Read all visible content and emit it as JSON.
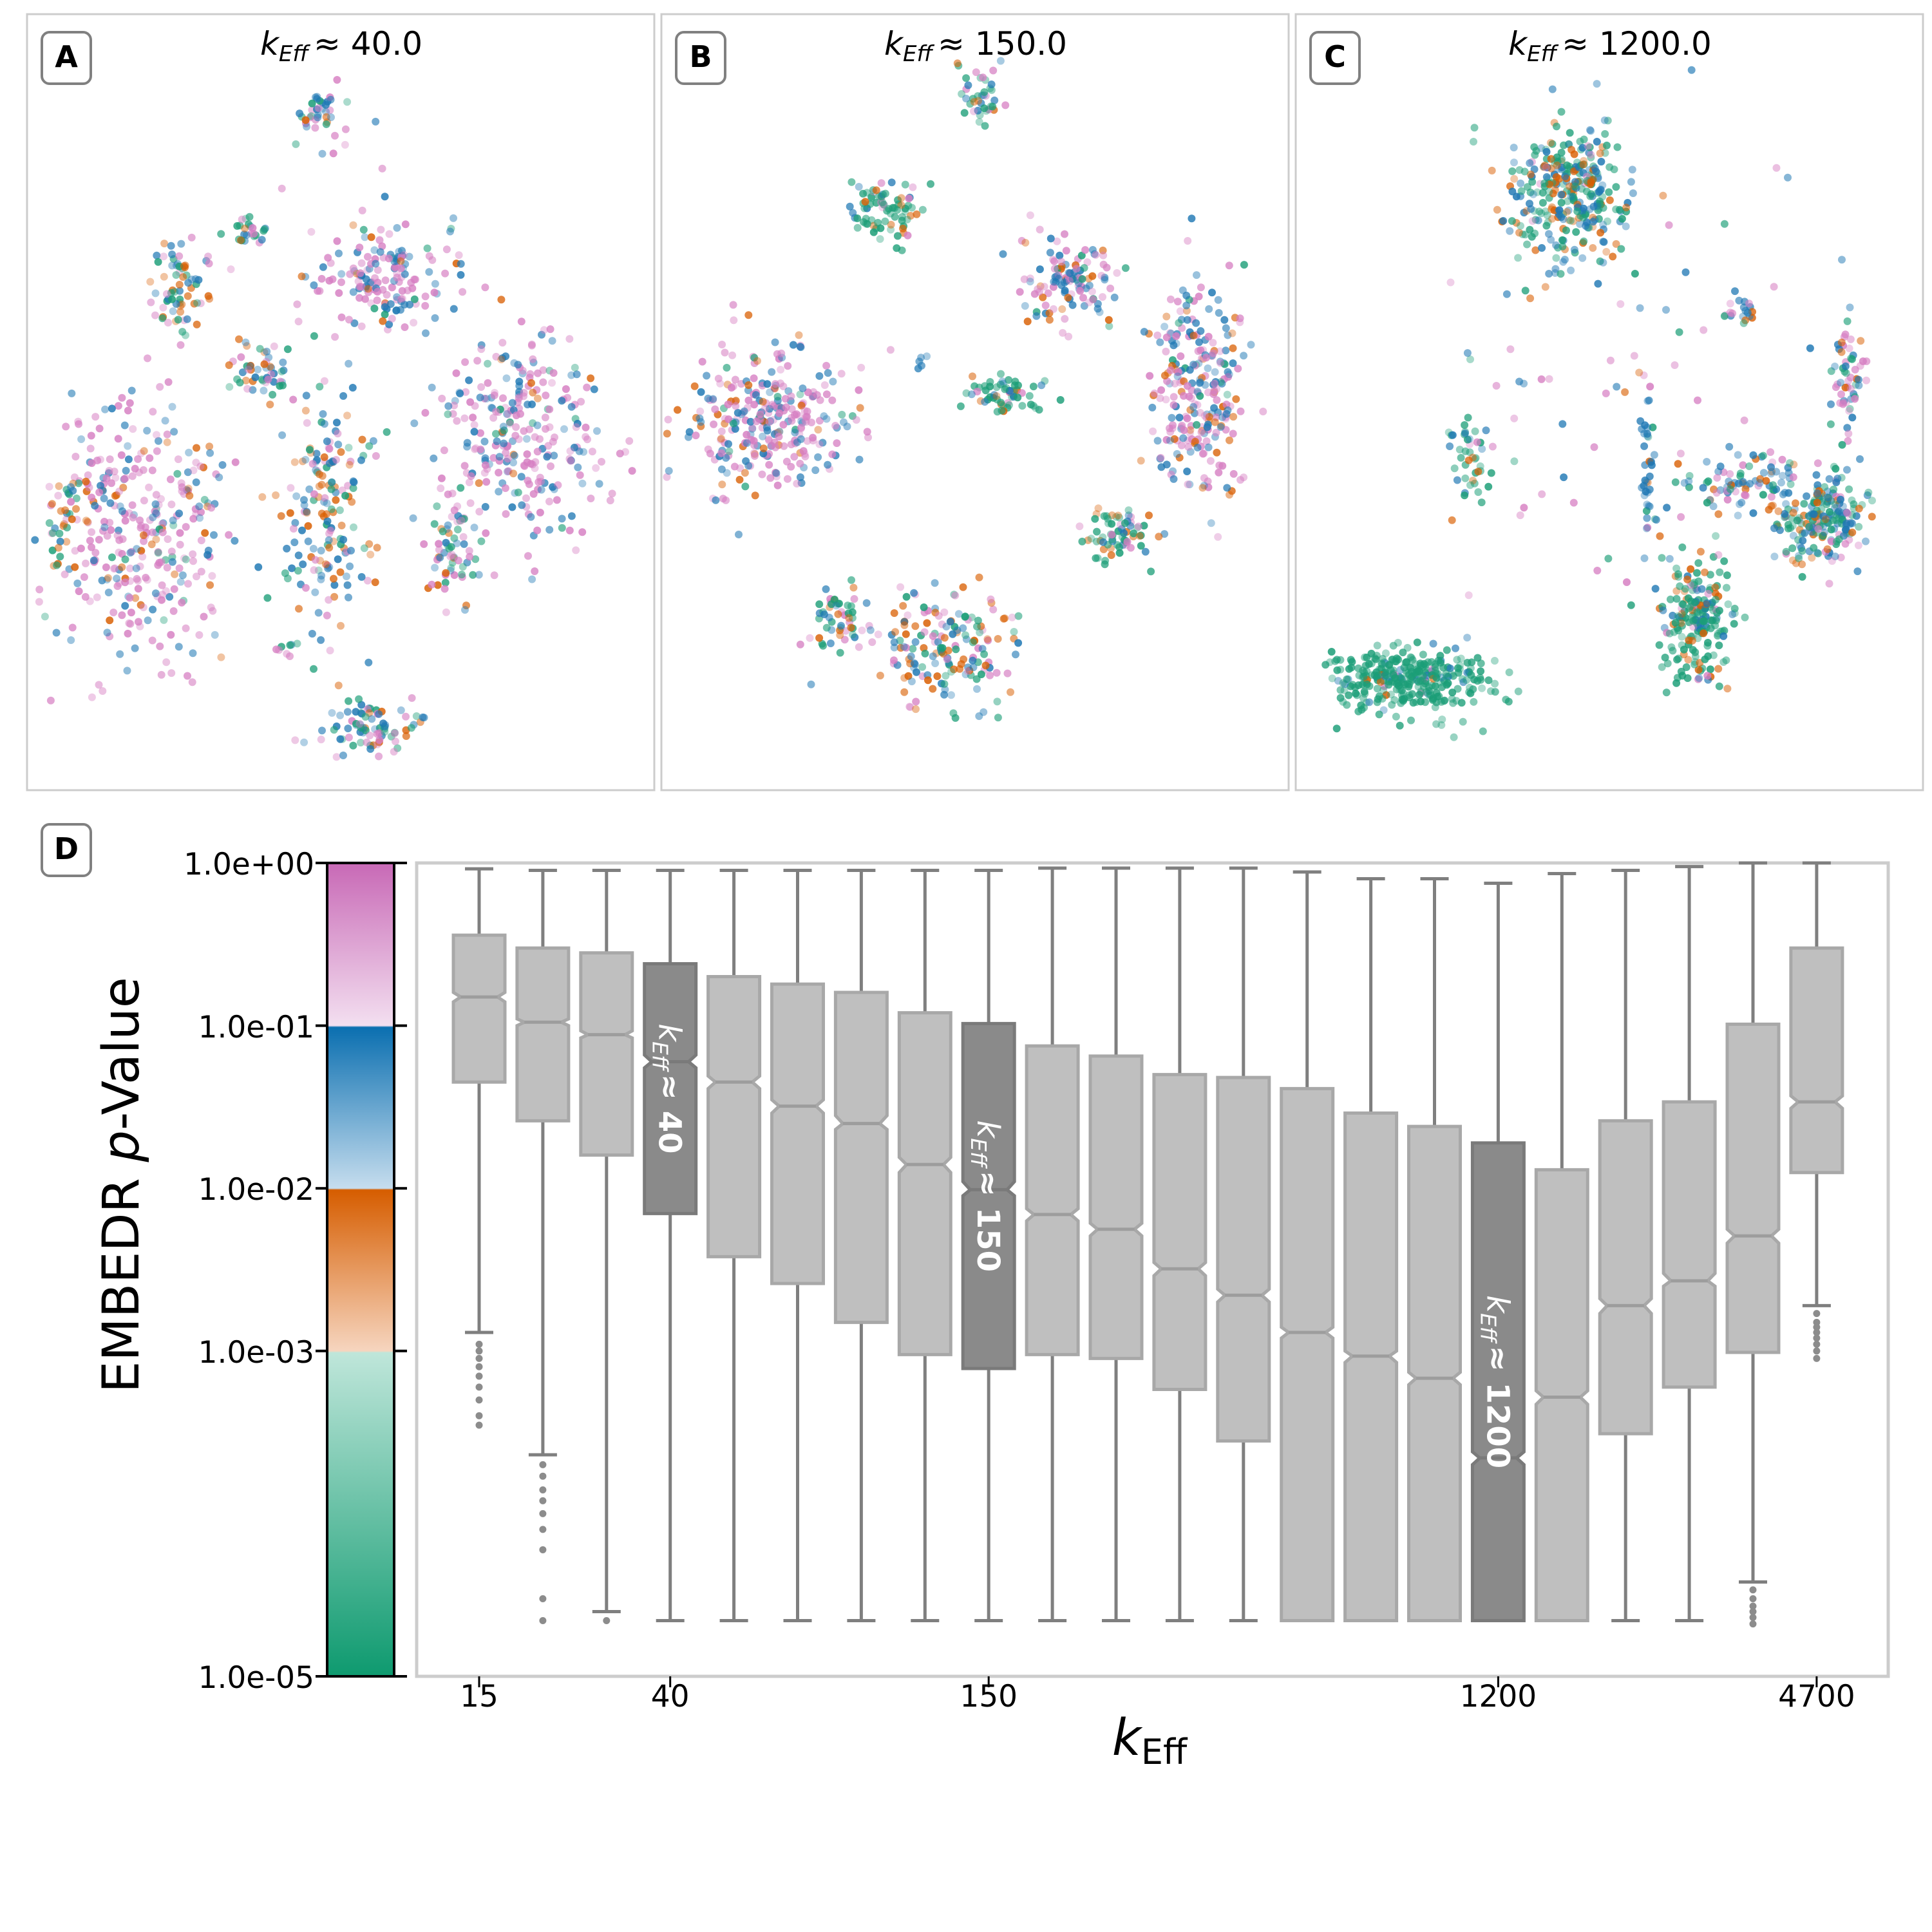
{
  "panels": [
    {
      "letter": "A",
      "k_symbol": "k",
      "k_subscript": "Eff",
      "k_value": "≈ 40.0"
    },
    {
      "letter": "B",
      "k_symbol": "k",
      "k_subscript": "Eff",
      "k_value": "≈ 150.0"
    },
    {
      "letter": "C",
      "k_symbol": "k",
      "k_subscript": "Eff",
      "k_value": "≈ 1200.0"
    }
  ],
  "panel_d_letter": "D",
  "colors": {
    "pink": "#d67ec2",
    "blue": "#1f78b4",
    "orange": "#d95f02",
    "green": "#1b9e77",
    "box_light": "#bfbfbf",
    "box_dark": "#8a8a8a",
    "line": "#7f7f7f",
    "frame": "#cccccc"
  },
  "colorbar": {
    "ticks": [
      "1.0e+00",
      "1.0e-01",
      "1.0e-02",
      "1.0e-03",
      "1.0e-05"
    ],
    "tick_values": [
      1,
      0.1,
      0.01,
      0.001,
      1e-05
    ]
  },
  "chart_data": {
    "type": "box",
    "title": "",
    "ylabel_prefix": "EMBEDR ",
    "ylabel_italic": "p",
    "ylabel_suffix": "-Value",
    "xlabel_symbol": "k",
    "xlabel_subscript": "Eff",
    "yscale": "log",
    "ylim": [
      1e-05,
      1
    ],
    "x_tick_labels": [
      {
        "label": "15",
        "box_index": 0
      },
      {
        "label": "40",
        "box_index": 3
      },
      {
        "label": "150",
        "box_index": 8
      },
      {
        "label": "1200",
        "box_index": 16
      },
      {
        "label": "4700",
        "box_index": 21
      }
    ],
    "annotations": [
      {
        "box_index": 3,
        "symbol": "k",
        "subscript": "Eff",
        "text": "≈ 40"
      },
      {
        "box_index": 8,
        "symbol": "k",
        "subscript": "Eff",
        "text": "≈ 150"
      },
      {
        "box_index": 16,
        "symbol": "k",
        "subscript": "Eff",
        "text": "≈ 1200"
      }
    ],
    "boxes": [
      {
        "q1": 0.045,
        "median": 0.15,
        "q3": 0.36,
        "whisker_low": 0.0013,
        "whisker_high": 0.92,
        "ci_low": 0.14,
        "ci_high": 0.16,
        "highlight": false,
        "outliers": [
          0.0011,
          0.001,
          0.0009,
          0.0008,
          0.0007,
          0.0006,
          0.0005,
          0.0004,
          0.00035
        ]
      },
      {
        "q1": 0.026,
        "median": 0.105,
        "q3": 0.3,
        "whisker_low": 0.00023,
        "whisker_high": 0.9,
        "ci_low": 0.1,
        "ci_high": 0.11,
        "highlight": false,
        "outliers": [
          0.0002,
          0.00017,
          0.00014,
          0.00012,
          0.0001,
          8e-05,
          6e-05,
          3e-05,
          2.2e-05
        ]
      },
      {
        "q1": 0.016,
        "median": 0.088,
        "q3": 0.28,
        "whisker_low": 2.5e-05,
        "whisker_high": 0.9,
        "ci_low": 0.084,
        "ci_high": 0.093,
        "highlight": false,
        "outliers": [
          2.2e-05
        ]
      },
      {
        "q1": 0.007,
        "median": 0.06,
        "q3": 0.24,
        "whisker_low": 2.2e-05,
        "whisker_high": 0.9,
        "ci_low": 0.055,
        "ci_high": 0.066,
        "highlight": true,
        "outliers": []
      },
      {
        "q1": 0.0038,
        "median": 0.045,
        "q3": 0.2,
        "whisker_low": 2.2e-05,
        "whisker_high": 0.9,
        "ci_low": 0.041,
        "ci_high": 0.049,
        "highlight": false,
        "outliers": []
      },
      {
        "q1": 0.0026,
        "median": 0.032,
        "q3": 0.18,
        "whisker_low": 2.2e-05,
        "whisker_high": 0.9,
        "ci_low": 0.029,
        "ci_high": 0.035,
        "highlight": false,
        "outliers": []
      },
      {
        "q1": 0.0015,
        "median": 0.025,
        "q3": 0.16,
        "whisker_low": 2.2e-05,
        "whisker_high": 0.9,
        "ci_low": 0.023,
        "ci_high": 0.028,
        "highlight": false,
        "outliers": []
      },
      {
        "q1": 0.00095,
        "median": 0.014,
        "q3": 0.12,
        "whisker_low": 2.2e-05,
        "whisker_high": 0.9,
        "ci_low": 0.0125,
        "ci_high": 0.0155,
        "highlight": false,
        "outliers": []
      },
      {
        "q1": 0.00078,
        "median": 0.0098,
        "q3": 0.103,
        "whisker_low": 2.2e-05,
        "whisker_high": 0.9,
        "ci_low": 0.009,
        "ci_high": 0.011,
        "highlight": true,
        "outliers": []
      },
      {
        "q1": 0.00095,
        "median": 0.0069,
        "q3": 0.075,
        "whisker_low": 2.2e-05,
        "whisker_high": 0.93,
        "ci_low": 0.0063,
        "ci_high": 0.0075,
        "highlight": false,
        "outliers": []
      },
      {
        "q1": 0.0009,
        "median": 0.0056,
        "q3": 0.065,
        "whisker_low": 2.2e-05,
        "whisker_high": 0.93,
        "ci_low": 0.0051,
        "ci_high": 0.0061,
        "highlight": false,
        "outliers": []
      },
      {
        "q1": 0.00058,
        "median": 0.0032,
        "q3": 0.05,
        "whisker_low": 2.2e-05,
        "whisker_high": 0.93,
        "ci_low": 0.0029,
        "ci_high": 0.0035,
        "highlight": false,
        "outliers": []
      },
      {
        "q1": 0.00028,
        "median": 0.0022,
        "q3": 0.048,
        "whisker_low": 2.2e-05,
        "whisker_high": 0.93,
        "ci_low": 0.002,
        "ci_high": 0.0024,
        "highlight": false,
        "outliers": []
      },
      {
        "q1": 2.2e-05,
        "median": 0.0013,
        "q3": 0.041,
        "whisker_low": 2.2e-05,
        "whisker_high": 0.88,
        "ci_low": 0.0012,
        "ci_high": 0.0014,
        "highlight": false,
        "outliers": []
      },
      {
        "q1": 2.2e-05,
        "median": 0.00093,
        "q3": 0.029,
        "whisker_low": 2.2e-05,
        "whisker_high": 0.8,
        "ci_low": 0.00085,
        "ci_high": 0.001,
        "highlight": false,
        "outliers": []
      },
      {
        "q1": 2.2e-05,
        "median": 0.00068,
        "q3": 0.024,
        "whisker_low": 2.2e-05,
        "whisker_high": 0.8,
        "ci_low": 0.00062,
        "ci_high": 0.00074,
        "highlight": false,
        "outliers": []
      },
      {
        "q1": 2.2e-05,
        "median": 0.00022,
        "q3": 0.019,
        "whisker_low": 2.2e-05,
        "whisker_high": 0.75,
        "ci_low": 0.0002,
        "ci_high": 0.00024,
        "highlight": true,
        "outliers": []
      },
      {
        "q1": 2.2e-05,
        "median": 0.00052,
        "q3": 0.013,
        "whisker_low": 2.2e-05,
        "whisker_high": 0.86,
        "ci_low": 0.00047,
        "ci_high": 0.00057,
        "highlight": false,
        "outliers": []
      },
      {
        "q1": 0.00031,
        "median": 0.0019,
        "q3": 0.026,
        "whisker_low": 2.2e-05,
        "whisker_high": 0.9,
        "ci_low": 0.0017,
        "ci_high": 0.0021,
        "highlight": false,
        "outliers": []
      },
      {
        "q1": 0.0006,
        "median": 0.0027,
        "q3": 0.034,
        "whisker_low": 2.2e-05,
        "whisker_high": 0.95,
        "ci_low": 0.0025,
        "ci_high": 0.003,
        "highlight": false,
        "outliers": []
      },
      {
        "q1": 0.00098,
        "median": 0.0051,
        "q3": 0.102,
        "whisker_low": 3.8e-05,
        "whisker_high": 1.0,
        "ci_low": 0.0046,
        "ci_high": 0.0056,
        "highlight": false,
        "outliers": [
          3.4e-05,
          3e-05,
          2.7e-05,
          2.5e-05,
          2.3e-05,
          2.1e-05
        ]
      },
      {
        "q1": 0.0125,
        "median": 0.034,
        "q3": 0.3,
        "whisker_low": 0.0019,
        "whisker_high": 1.0,
        "ci_low": 0.031,
        "ci_high": 0.037,
        "highlight": false,
        "outliers": [
          0.0017,
          0.0015,
          0.0014,
          0.0013,
          0.0012,
          0.0011,
          0.001,
          0.0009
        ]
      }
    ]
  }
}
